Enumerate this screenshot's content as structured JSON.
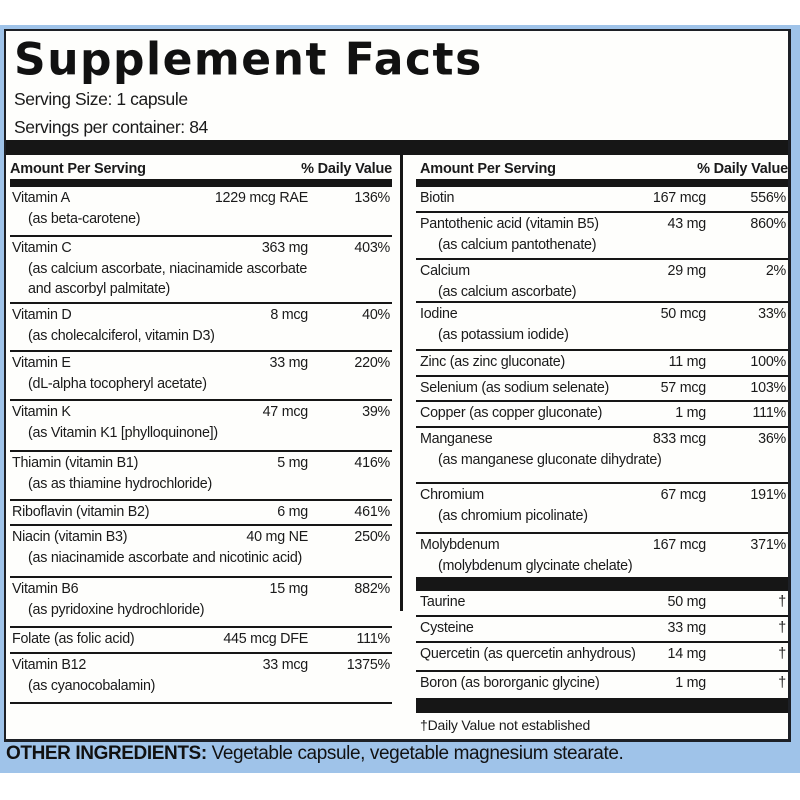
{
  "label": {
    "title": "Supplement Facts",
    "serving_size": "Serving Size: 1 capsule",
    "servings_per_container": "Servings per container: 84",
    "header": {
      "amount_per_serving": "Amount Per Serving",
      "daily_value": "% Daily Value"
    },
    "left_column": [
      {
        "name": "Vitamin A",
        "sub": [
          "(as beta-carotene)"
        ],
        "amount": "1229 mcg RAE",
        "dv": "136%"
      },
      {
        "name": "Vitamin C",
        "sub": [
          "(as calcium ascorbate, niacinamide ascorbate",
          "and ascorbyl palmitate)"
        ],
        "amount": "363 mg",
        "dv": "403%"
      },
      {
        "name": "Vitamin D",
        "sub": [
          "(as cholecalciferol, vitamin D3)"
        ],
        "amount": "8 mcg",
        "dv": "40%"
      },
      {
        "name": "Vitamin E",
        "sub": [
          "(dL-alpha tocopheryl acetate)"
        ],
        "amount": "33 mg",
        "dv": "220%"
      },
      {
        "name": "Vitamin K",
        "sub": [
          "(as Vitamin K1 [phylloquinone])"
        ],
        "amount": "47 mcg",
        "dv": "39%"
      },
      {
        "name": "Thiamin (vitamin B1)",
        "sub": [
          "(as as thiamine hydrochloride)"
        ],
        "amount": "5 mg",
        "dv": "416%"
      },
      {
        "name": "Riboflavin (vitamin B2)",
        "sub": [],
        "amount": "6 mg",
        "dv": "461%"
      },
      {
        "name": "Niacin (vitamin B3)",
        "sub": [
          "(as niacinamide ascorbate and nicotinic acid)"
        ],
        "amount": "40 mg NE",
        "dv": "250%"
      },
      {
        "name": "Vitamin B6",
        "sub": [
          "(as pyridoxine hydrochloride)"
        ],
        "amount": "15 mg",
        "dv": "882%"
      },
      {
        "name": "Folate (as folic acid)",
        "sub": [],
        "amount": "445 mcg DFE",
        "dv": "111%"
      },
      {
        "name": "Vitamin B12",
        "sub": [
          "(as cyanocobalamin)"
        ],
        "amount": "33 mcg",
        "dv": "1375%"
      }
    ],
    "right_column": [
      {
        "name": "Biotin",
        "sub": [],
        "amount": "167 mcg",
        "dv": "556%"
      },
      {
        "name": "Pantothenic acid (vitamin B5)",
        "sub": [
          "(as calcium pantothenate)"
        ],
        "amount": "43 mg",
        "dv": "860%"
      },
      {
        "name": "Calcium",
        "sub": [
          "(as calcium ascorbate)"
        ],
        "amount": "29 mg",
        "dv": "2%"
      },
      {
        "name": "Iodine",
        "sub": [
          "(as potassium iodide)"
        ],
        "amount": "50 mcg",
        "dv": "33%"
      },
      {
        "name": "Zinc (as zinc gluconate)",
        "sub": [],
        "amount": "11 mg",
        "dv": "100%"
      },
      {
        "name": "Selenium (as sodium selenate)",
        "sub": [],
        "amount": "57 mcg",
        "dv": "103%"
      },
      {
        "name": "Copper (as copper gluconate)",
        "sub": [],
        "amount": "1 mg",
        "dv": "111%"
      },
      {
        "name": "Manganese",
        "sub": [
          "(as manganese gluconate dihydrate)"
        ],
        "amount": "833 mcg",
        "dv": "36%"
      },
      {
        "name": "Chromium",
        "sub": [
          "(as chromium picolinate)"
        ],
        "amount": "67 mcg",
        "dv": "191%"
      },
      {
        "name": "Molybdenum",
        "sub": [
          "(molybdenum glycinate chelate)"
        ],
        "amount": "167 mcg",
        "dv": "371%"
      }
    ],
    "other_nutrients": [
      {
        "name": "Taurine",
        "amount": "50 mg",
        "dv": "†"
      },
      {
        "name": "Cysteine",
        "amount": "33 mg",
        "dv": "†"
      },
      {
        "name": "Quercetin (as quercetin anhydrous)",
        "amount": "14 mg",
        "dv": "†"
      },
      {
        "name": "Boron (as bororganic glycine)",
        "amount": "1 mg",
        "dv": "†"
      }
    ],
    "footnote": "†Daily Value not established"
  },
  "other_ingredients": {
    "label": "OTHER INGREDIENTS:",
    "text": " Vegetable capsule, vegetable magnesium stearate."
  },
  "colors": {
    "frame_blue": "#9fc3e9",
    "ink": "#161616",
    "label_bg": "#fefefc"
  }
}
